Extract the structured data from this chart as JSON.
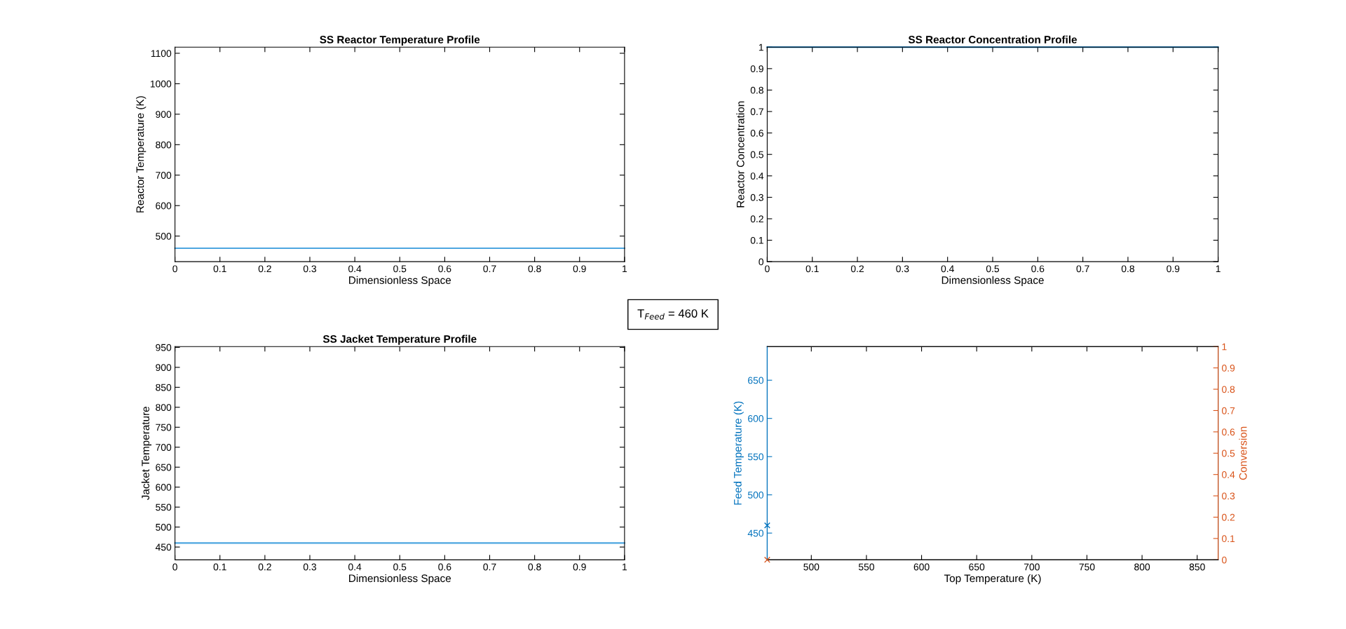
{
  "chart_data": [
    {
      "type": "line",
      "title": "SS Reactor Temperature Profile",
      "xlabel": "Dimensionless Space",
      "ylabel": "Reactor Temperature (K)",
      "x": [
        0,
        1
      ],
      "xlim": [
        0,
        1
      ],
      "xticks": [
        0,
        0.1,
        0.2,
        0.3,
        0.4,
        0.5,
        0.6,
        0.7,
        0.8,
        0.9,
        1
      ],
      "ylim": [
        416,
        1120
      ],
      "yticks": [
        500,
        600,
        700,
        800,
        900,
        1000,
        1100
      ],
      "grid": false,
      "legend": false,
      "series": [
        {
          "color": "#4da6e0",
          "values": [
            460,
            460
          ]
        }
      ],
      "annotations": [
        "T$_{Feed}$ = 460 K"
      ]
    },
    {
      "type": "line",
      "title": "SS Reactor Concentration Profile",
      "xlabel": "Dimensionless Space",
      "ylabel": "Reactor Concentration",
      "x": [
        0,
        1
      ],
      "xlim": [
        0,
        1
      ],
      "xticks": [
        0,
        0.1,
        0.2,
        0.3,
        0.4,
        0.5,
        0.6,
        0.7,
        0.8,
        0.9,
        1
      ],
      "ylim": [
        0,
        1
      ],
      "yticks": [
        0,
        0.1,
        0.2,
        0.3,
        0.4,
        0.5,
        0.6,
        0.7,
        0.8,
        0.9,
        1
      ],
      "grid": false,
      "legend": false,
      "series": [
        {
          "color": "#0072bd",
          "values": [
            1,
            1
          ]
        }
      ]
    },
    {
      "type": "line",
      "title": "SS Jacket Temperature Profile",
      "xlabel": "Dimensionless Space",
      "ylabel": "Jacket Temperature",
      "x": [
        0,
        1
      ],
      "xlim": [
        0,
        1
      ],
      "xticks": [
        0,
        0.1,
        0.2,
        0.3,
        0.4,
        0.5,
        0.6,
        0.7,
        0.8,
        0.9,
        1
      ],
      "ylim": [
        418,
        952
      ],
      "yticks": [
        450,
        500,
        550,
        600,
        650,
        700,
        750,
        800,
        850,
        900,
        950
      ],
      "grid": false,
      "legend": false,
      "series": [
        {
          "color": "#4da6e0",
          "values": [
            460,
            460
          ]
        }
      ]
    },
    {
      "type": "scatter",
      "xlabel": "Top Temperature (K)",
      "ylabel": "Feed Temperature (K)",
      "y2label": "Conversion",
      "x": [
        460
      ],
      "xlim": [
        460,
        869
      ],
      "xticks": [
        500,
        550,
        600,
        650,
        700,
        750,
        800,
        850
      ],
      "ylim": [
        415,
        694
      ],
      "yticks": [
        450,
        500,
        550,
        600,
        650
      ],
      "y2lim": [
        0,
        1
      ],
      "y2ticks": [
        0,
        0.1,
        0.2,
        0.3,
        0.4,
        0.5,
        0.6,
        0.7,
        0.8,
        0.9,
        1
      ],
      "grid": false,
      "legend": false,
      "marker": "cross",
      "series": [
        {
          "color": "#0072bd",
          "values": [
            460
          ]
        },
        {
          "color": "#d95319",
          "values": [
            0
          ],
          "axis": "y2"
        }
      ]
    }
  ]
}
